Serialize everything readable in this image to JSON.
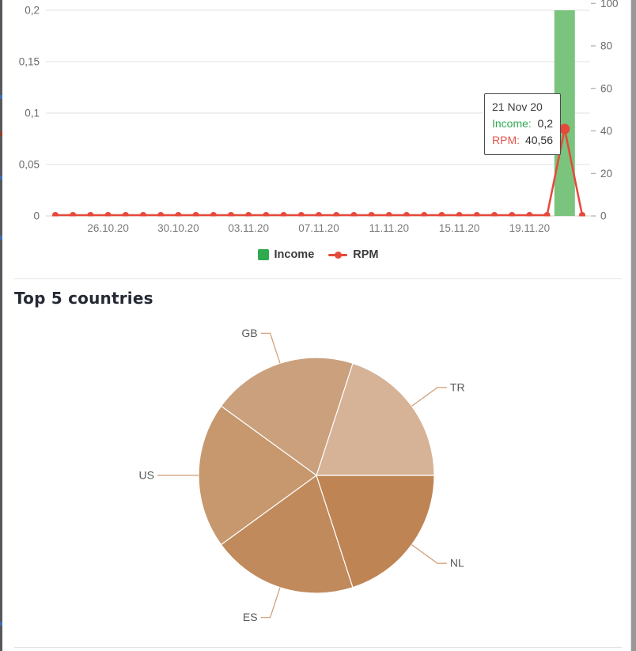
{
  "page": {
    "heading_top5": "Top 5 countries"
  },
  "colors": {
    "income_legend": "#2faa4e",
    "income_bar": "#7ac47e",
    "rpm_line": "#e6493a",
    "gridline": "#e0e0e0",
    "axis_text": "#6b6b6b",
    "pie_leader": "#cf9b73",
    "pie_label_text": "#58595b"
  },
  "chart_data": [
    {
      "type": "bar",
      "subtype": "combo-bar-line",
      "x": [
        "23.10.20",
        "24.10.20",
        "25.10.20",
        "26.10.20",
        "27.10.20",
        "28.10.20",
        "29.10.20",
        "30.10.20",
        "31.10.20",
        "01.11.20",
        "02.11.20",
        "03.11.20",
        "04.11.20",
        "05.11.20",
        "06.11.20",
        "07.11.20",
        "08.11.20",
        "09.11.20",
        "10.11.20",
        "11.11.20",
        "12.11.20",
        "13.11.20",
        "14.11.20",
        "15.11.20",
        "16.11.20",
        "17.11.20",
        "18.11.20",
        "19.11.20",
        "20.11.20",
        "21.11.20",
        "22.11.20"
      ],
      "x_tick_indices": [
        3,
        7,
        11,
        15,
        19,
        23,
        27
      ],
      "series": [
        {
          "name": "Income",
          "type": "bar",
          "axis": "left",
          "color": "#7ac47e",
          "values": [
            0,
            0,
            0,
            0,
            0,
            0,
            0,
            0,
            0,
            0,
            0,
            0,
            0,
            0,
            0,
            0,
            0,
            0,
            0,
            0,
            0,
            0,
            0,
            0,
            0,
            0,
            0,
            0,
            0,
            0.2,
            0
          ]
        },
        {
          "name": "RPM",
          "type": "line",
          "axis": "right",
          "color": "#e6493a",
          "values": [
            0,
            0,
            0,
            0,
            0,
            0,
            0,
            0,
            0,
            0,
            0,
            0,
            0,
            0,
            0,
            0,
            0,
            0,
            0,
            0,
            0,
            0,
            0,
            0,
            0,
            0,
            0,
            0,
            0,
            40.56,
            0
          ]
        }
      ],
      "left_axis": {
        "labels": [
          "0",
          "0,05",
          "0,1",
          "0,15",
          "0,2"
        ],
        "values": [
          0,
          0.05,
          0.1,
          0.15,
          0.2
        ],
        "min": 0,
        "max": 0.2
      },
      "right_axis": {
        "labels": [
          "0",
          "20",
          "40",
          "60",
          "80",
          "100"
        ],
        "values": [
          0,
          20,
          40,
          60,
          80,
          100
        ],
        "min": 0,
        "max": 100
      },
      "grid": true,
      "legend_position": "bottom",
      "legend": [
        {
          "label": "Income"
        },
        {
          "label": "RPM"
        }
      ],
      "tooltip": {
        "date": "21 Nov 20",
        "income_label": "Income:",
        "income_value": "0,2",
        "rpm_label": "RPM:",
        "rpm_value": "40,56"
      }
    },
    {
      "type": "pie",
      "title": "Top 5 countries",
      "labels": [
        "TR",
        "GB",
        "US",
        "ES",
        "NL"
      ],
      "values": [
        20,
        20,
        20,
        20,
        20
      ],
      "colors": [
        "#d6b296",
        "#caa07d",
        "#c7986e",
        "#c08a5c",
        "#bf8454"
      ],
      "start_angle_deg": 0,
      "direction": "ccw",
      "legend_position": "none"
    }
  ]
}
